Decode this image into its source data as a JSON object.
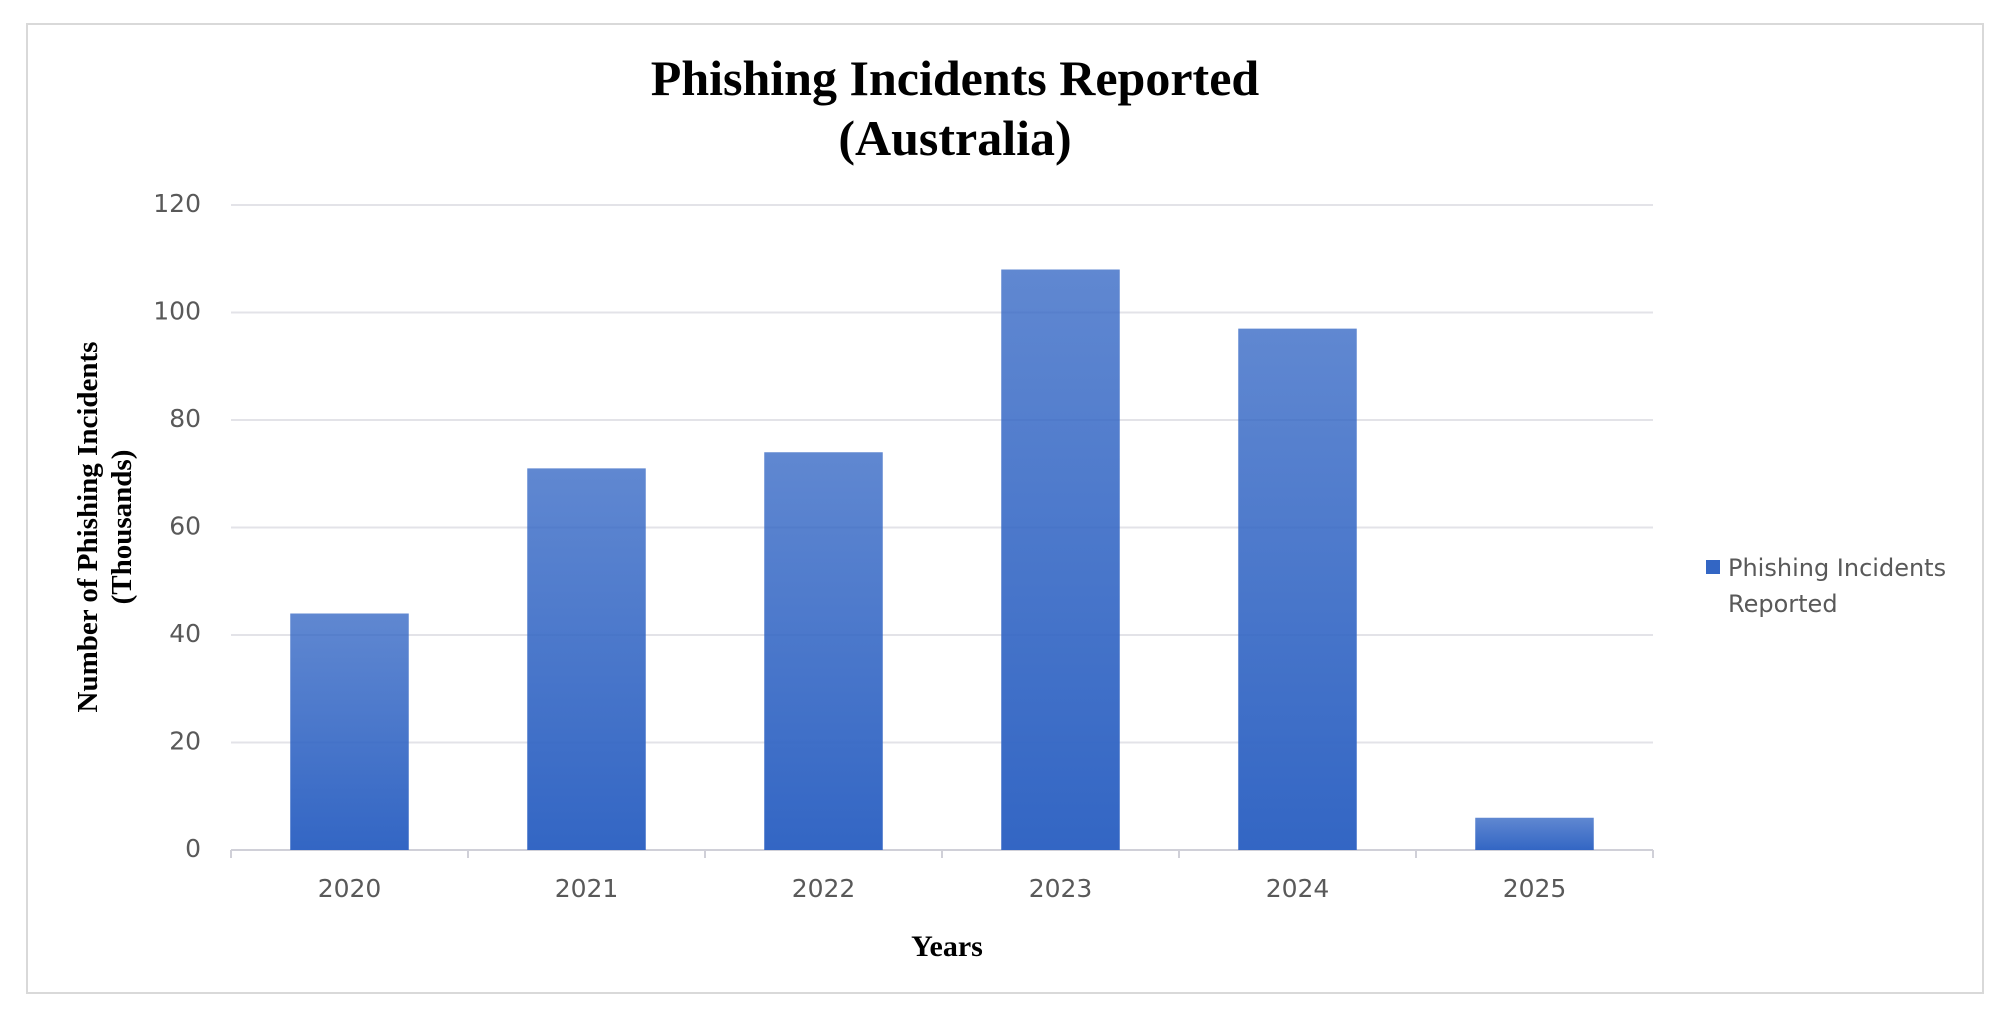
{
  "chart_data": {
    "type": "bar",
    "title": "Phishing Incidents Reported\n(Australia)",
    "x_label": "Years",
    "y_label": "Number of Phishing Incidents\n(Thousands)",
    "categories": [
      "2020",
      "2021",
      "2022",
      "2023",
      "2024",
      "2025"
    ],
    "series": [
      {
        "name": "Phishing Incidents Reported",
        "color": "#3366c4",
        "values": [
          44,
          71,
          74,
          108,
          97,
          6
        ]
      }
    ],
    "ylim": [
      0,
      120
    ],
    "yticks": [
      0,
      20,
      40,
      60,
      80,
      100,
      120
    ],
    "grid": true,
    "legend": "right"
  }
}
